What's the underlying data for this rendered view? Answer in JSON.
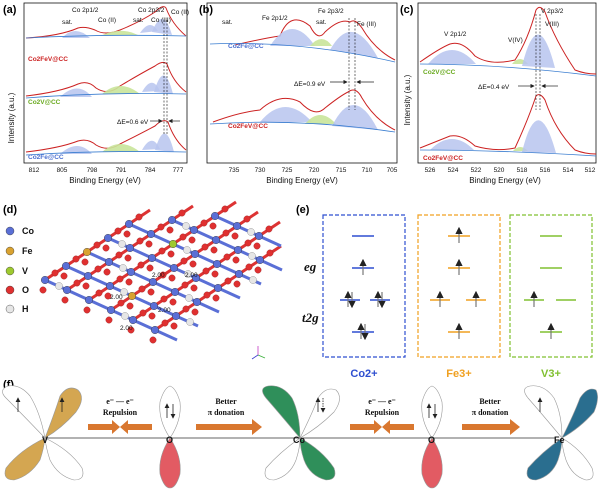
{
  "panels": {
    "a": "(a)",
    "b": "(b)",
    "c": "(c)",
    "d": "(d)",
    "e": "(e)",
    "f": "(f)"
  },
  "axis": {
    "x_label": "Binding Energy (eV)",
    "y_label": "Intensity (a.u.)"
  },
  "panel_a": {
    "ticks": [
      "812",
      "805",
      "798",
      "791",
      "784",
      "777"
    ],
    "peaks": [
      "sat.",
      "Co 2p1/2",
      "Co (II)",
      "sat.",
      "Co 2p3/2",
      "Co (III)",
      "Co (II)"
    ],
    "samples": [
      "Co2FeV@CC",
      "Co2V@CC",
      "Co2Fe@CC"
    ],
    "delta": "ΔE=0.6 eV"
  },
  "panel_b": {
    "ticks": [
      "735",
      "730",
      "725",
      "720",
      "715",
      "710",
      "705"
    ],
    "peaks": [
      "sat.",
      "Fe 2p1/2",
      "Fe 2p3/2",
      "sat.",
      "Fe (III)"
    ],
    "samples": [
      "Co2Fe@CC",
      "Co2FeV@CC"
    ],
    "delta": "ΔE=0.9 eV"
  },
  "panel_c": {
    "ticks": [
      "526",
      "524",
      "522",
      "520",
      "518",
      "516",
      "514",
      "512"
    ],
    "peaks": [
      "V 2p1/2",
      "V 2p3/2",
      "V(IV)",
      "V(III)"
    ],
    "samples": [
      "Co2V@CC",
      "Co2FeV@CC"
    ],
    "delta": "ΔE=0.4 eV"
  },
  "legend": [
    "Co",
    "Fe",
    "V",
    "O",
    "H"
  ],
  "legend_colors": [
    "#5a6fd6",
    "#d9a230",
    "#9ec92f",
    "#e03030",
    "#e6e6e6"
  ],
  "bond_labels": [
    "2.00",
    "2.00",
    "2.00",
    "2.00",
    "2.00"
  ],
  "orbitals": {
    "eg": "eg",
    "t2g": "t2g"
  },
  "ions": [
    "Co2+",
    "Fe3+",
    "V3+"
  ],
  "ion_colors": [
    "#2f4fd0",
    "#f0a020",
    "#80c030"
  ],
  "mech": {
    "nodes": [
      "V",
      "O",
      "Co",
      "O",
      "Fe"
    ],
    "repulsion_top": "e⁻ — e⁻",
    "repulsion": "Repulsion",
    "better": "Better",
    "donation": "π donation"
  }
}
